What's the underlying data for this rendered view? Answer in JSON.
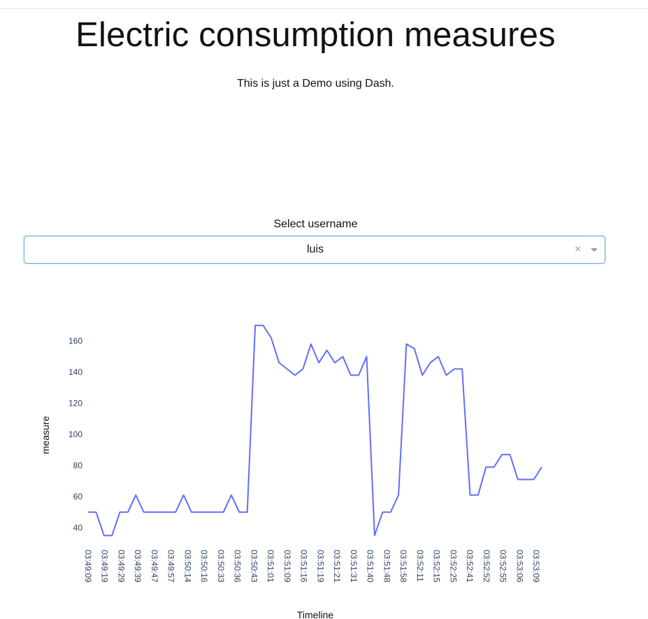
{
  "header": {
    "title": "Electric consumption measures",
    "subtitle": "This is just a Demo using Dash."
  },
  "selector": {
    "label": "Select username",
    "value": "luis",
    "clear_glyph": "×",
    "arrow_icon": "caret-down-icon"
  },
  "colors": {
    "line": "#636efa",
    "dropdown_border": "#6aa5e8"
  },
  "chart_data": {
    "type": "line",
    "xlabel": "Timeline",
    "ylabel": "measure",
    "ylim": [
      30,
      175
    ],
    "yticks": [
      40,
      60,
      80,
      100,
      120,
      140,
      160
    ],
    "x_tick_labels": [
      "03:49:09",
      "03:49:19",
      "03:49:29",
      "03:49:39",
      "03:49:47",
      "03:49:57",
      "03:50:14",
      "03:50:16",
      "03:50:33",
      "03:50:36",
      "03:50:43",
      "03:51:01",
      "03:51:09",
      "03:51:16",
      "03:51:19",
      "03:51:21",
      "03:51:31",
      "03:51:40",
      "03:51:48",
      "03:51:58",
      "03:52:11",
      "03:52:15",
      "03:52:25",
      "03:52:41",
      "03:52:52",
      "03:52:55",
      "03:53:06",
      "03:53:09"
    ],
    "series": [
      {
        "values": [
          50,
          50,
          35,
          35,
          50,
          50,
          61,
          50,
          50,
          50,
          50,
          50,
          61,
          50,
          50,
          50,
          50,
          50,
          61,
          50,
          50,
          170,
          170,
          162,
          146,
          142,
          138,
          142,
          158,
          146,
          154,
          146,
          150,
          138,
          138,
          150,
          35,
          50,
          50,
          61,
          158,
          155,
          138,
          146,
          150,
          138,
          142,
          142,
          61,
          61,
          79,
          79,
          87,
          87,
          71,
          71,
          71,
          79
        ]
      }
    ]
  }
}
